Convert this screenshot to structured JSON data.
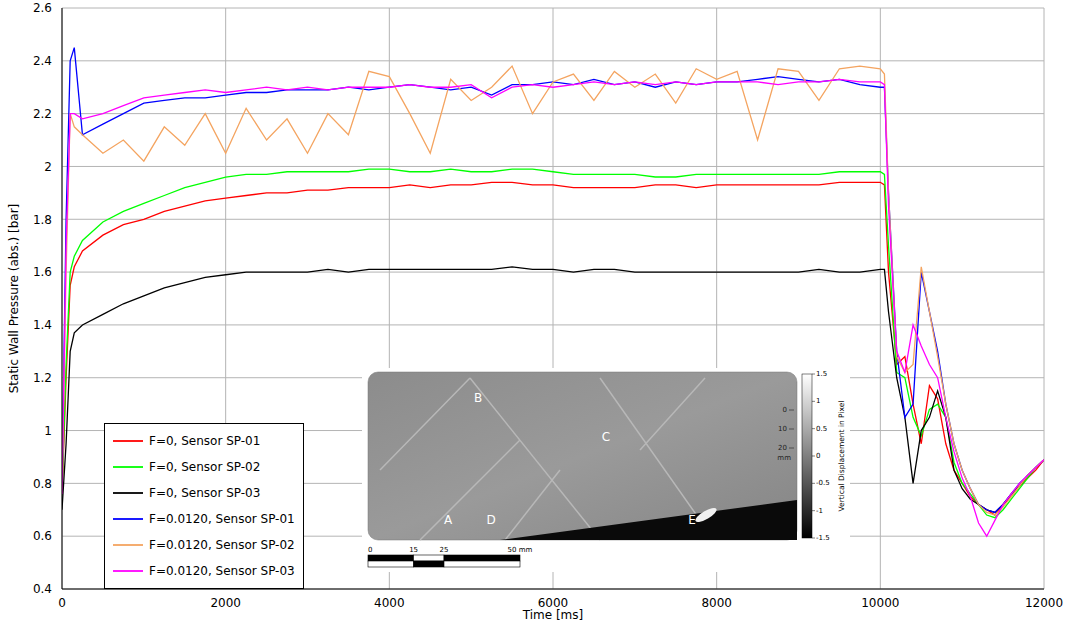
{
  "chart_data": {
    "type": "line",
    "x_label": "Time [ms]",
    "y_label": "Static Wall Pressure (abs.) [bar]",
    "xlim": [
      0,
      12000
    ],
    "xticks": [
      0,
      2000,
      4000,
      6000,
      8000,
      10000,
      12000
    ],
    "ylim": [
      0.4,
      2.6
    ],
    "yticks": [
      0.4,
      0.6,
      0.8,
      1,
      1.2,
      1.4,
      1.6,
      1.8,
      2,
      2.2,
      2.4,
      2.6
    ],
    "grid": true,
    "legend": "lower left",
    "x": [
      0,
      50,
      100,
      150,
      250,
      500,
      750,
      1000,
      1250,
      1500,
      1750,
      2000,
      2250,
      2500,
      2750,
      3000,
      3250,
      3500,
      3750,
      4000,
      4250,
      4500,
      4750,
      5000,
      5250,
      5500,
      5750,
      6000,
      6250,
      6500,
      6750,
      7000,
      7250,
      7500,
      7750,
      8000,
      8250,
      8500,
      8750,
      9000,
      9250,
      9500,
      9750,
      10000,
      10050,
      10100,
      10200,
      10300,
      10400,
      10500,
      10600,
      10700,
      10800,
      10900,
      11000,
      11100,
      11200,
      11300,
      11400,
      11500,
      11600,
      11700,
      11800,
      11900,
      12000
    ],
    "series": [
      {
        "name": "F=0, Sensor SP-01",
        "color": "#ff0000",
        "values": [
          0.76,
          1.2,
          1.55,
          1.62,
          1.68,
          1.74,
          1.78,
          1.8,
          1.83,
          1.85,
          1.87,
          1.88,
          1.89,
          1.9,
          1.9,
          1.91,
          1.91,
          1.92,
          1.92,
          1.92,
          1.93,
          1.92,
          1.93,
          1.93,
          1.94,
          1.94,
          1.93,
          1.93,
          1.92,
          1.92,
          1.92,
          1.92,
          1.93,
          1.93,
          1.92,
          1.93,
          1.93,
          1.93,
          1.93,
          1.93,
          1.93,
          1.94,
          1.94,
          1.94,
          1.93,
          1.6,
          1.25,
          1.28,
          1.1,
          0.95,
          1.17,
          1.12,
          0.95,
          0.85,
          0.8,
          0.75,
          0.72,
          0.7,
          0.68,
          0.72,
          0.75,
          0.79,
          0.82,
          0.85,
          0.89
        ]
      },
      {
        "name": "F=0, Sensor SP-02",
        "color": "#00ff00",
        "values": [
          0.77,
          1.25,
          1.6,
          1.66,
          1.72,
          1.79,
          1.83,
          1.86,
          1.89,
          1.92,
          1.94,
          1.96,
          1.97,
          1.97,
          1.98,
          1.98,
          1.98,
          1.98,
          1.99,
          1.99,
          1.98,
          1.98,
          1.99,
          1.98,
          1.98,
          1.99,
          1.99,
          1.98,
          1.97,
          1.97,
          1.97,
          1.97,
          1.96,
          1.96,
          1.97,
          1.97,
          1.97,
          1.97,
          1.97,
          1.97,
          1.97,
          1.98,
          1.98,
          1.98,
          1.97,
          1.7,
          1.22,
          1.2,
          1.05,
          0.98,
          1.08,
          1.1,
          1.05,
          0.88,
          0.8,
          0.76,
          0.72,
          0.68,
          0.67,
          0.7,
          0.74,
          0.78,
          0.82,
          0.86,
          0.89
        ]
      },
      {
        "name": "F=0, Sensor SP-03",
        "color": "#000000",
        "values": [
          0.7,
          0.95,
          1.3,
          1.37,
          1.4,
          1.44,
          1.48,
          1.51,
          1.54,
          1.56,
          1.58,
          1.59,
          1.6,
          1.6,
          1.6,
          1.6,
          1.61,
          1.6,
          1.61,
          1.61,
          1.61,
          1.61,
          1.61,
          1.61,
          1.61,
          1.62,
          1.61,
          1.61,
          1.6,
          1.61,
          1.61,
          1.6,
          1.6,
          1.6,
          1.6,
          1.6,
          1.6,
          1.6,
          1.6,
          1.6,
          1.61,
          1.6,
          1.6,
          1.61,
          1.61,
          1.45,
          1.2,
          1.05,
          0.8,
          1.0,
          1.05,
          1.15,
          1.05,
          0.85,
          0.78,
          0.74,
          0.72,
          0.7,
          0.69,
          0.72,
          0.76,
          0.79,
          0.83,
          0.86,
          0.89
        ]
      },
      {
        "name": "F=0.0120, Sensor SP-01",
        "color": "#0000ff",
        "values": [
          0.8,
          1.8,
          2.4,
          2.45,
          2.12,
          2.16,
          2.2,
          2.24,
          2.25,
          2.26,
          2.26,
          2.27,
          2.28,
          2.28,
          2.29,
          2.29,
          2.29,
          2.3,
          2.29,
          2.3,
          2.31,
          2.3,
          2.29,
          2.3,
          2.27,
          2.31,
          2.31,
          2.32,
          2.31,
          2.33,
          2.31,
          2.32,
          2.3,
          2.32,
          2.31,
          2.32,
          2.32,
          2.33,
          2.34,
          2.33,
          2.32,
          2.33,
          2.31,
          2.3,
          2.3,
          1.9,
          1.3,
          1.05,
          1.1,
          1.6,
          1.45,
          1.3,
          1.1,
          0.95,
          0.85,
          0.78,
          0.72,
          0.7,
          0.69,
          0.72,
          0.76,
          0.8,
          0.83,
          0.86,
          0.89
        ]
      },
      {
        "name": "F=0.0120, Sensor SP-02",
        "color": "#f4a460",
        "values": [
          0.78,
          1.6,
          2.2,
          2.15,
          2.12,
          2.05,
          2.1,
          2.02,
          2.15,
          2.08,
          2.2,
          2.05,
          2.22,
          2.1,
          2.18,
          2.05,
          2.2,
          2.12,
          2.36,
          2.34,
          2.2,
          2.05,
          2.33,
          2.25,
          2.3,
          2.38,
          2.2,
          2.32,
          2.35,
          2.25,
          2.36,
          2.3,
          2.35,
          2.24,
          2.37,
          2.33,
          2.36,
          2.1,
          2.37,
          2.36,
          2.25,
          2.37,
          2.38,
          2.37,
          2.35,
          1.9,
          1.28,
          1.22,
          1.25,
          1.62,
          1.45,
          1.28,
          1.1,
          0.95,
          0.85,
          0.78,
          0.72,
          0.69,
          0.68,
          0.71,
          0.75,
          0.79,
          0.83,
          0.86,
          0.89
        ]
      },
      {
        "name": "F=0.0120, Sensor SP-03",
        "color": "#ff00ff",
        "values": [
          0.76,
          1.7,
          2.2,
          2.2,
          2.18,
          2.2,
          2.23,
          2.26,
          2.27,
          2.28,
          2.29,
          2.28,
          2.29,
          2.3,
          2.29,
          2.3,
          2.29,
          2.3,
          2.3,
          2.3,
          2.31,
          2.3,
          2.3,
          2.31,
          2.26,
          2.3,
          2.31,
          2.3,
          2.31,
          2.32,
          2.31,
          2.32,
          2.31,
          2.32,
          2.31,
          2.32,
          2.32,
          2.32,
          2.31,
          2.32,
          2.32,
          2.33,
          2.32,
          2.32,
          2.31,
          1.85,
          1.3,
          1.22,
          1.4,
          1.32,
          1.25,
          1.2,
          1.05,
          0.92,
          0.82,
          0.75,
          0.65,
          0.6,
          0.66,
          0.72,
          0.76,
          0.8,
          0.83,
          0.86,
          0.89
        ]
      }
    ],
    "inset": {
      "point_labels": [
        "A",
        "B",
        "C",
        "D",
        "E"
      ],
      "colorbar": {
        "label": "Vertical Displacement in Pixel",
        "range": [
          -1.5,
          1.5
        ],
        "ticks": [
          1.5,
          1,
          0.5,
          0,
          -0.5,
          -1,
          -1.5
        ]
      },
      "ruler": {
        "ticks": [
          0,
          10,
          20
        ],
        "unit": "mm"
      },
      "scale_bar": {
        "ticks": [
          0,
          15,
          25,
          {
            "value": 50,
            "label": "50 mm"
          }
        ]
      }
    }
  }
}
